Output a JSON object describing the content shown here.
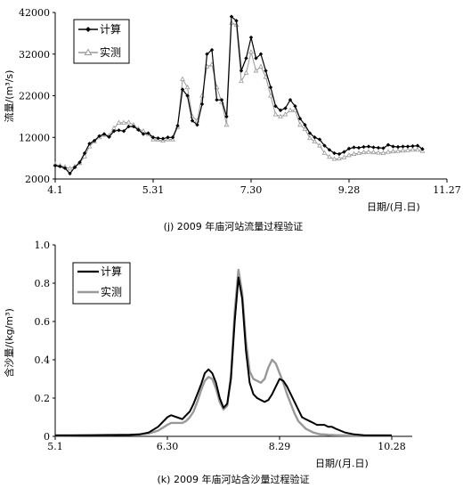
{
  "chart_data": [
    {
      "type": "line",
      "caption": "(j) 2009 年庙河站流量过程验证",
      "xlabel": "日期/(月.日)",
      "ylabel": "流量/(m³/s)",
      "xticks": [
        "4.1",
        "5.31",
        "7.30",
        "9.28",
        "11.27"
      ],
      "yticks": [
        "2000",
        "12000",
        "22000",
        "32000",
        "42000"
      ],
      "ylim": [
        2000,
        42000
      ],
      "legend_position": "top-left",
      "series": [
        {
          "name": "计算",
          "color": "#000000",
          "marker": "diamond",
          "x": [
            0,
            3,
            6,
            9,
            12,
            15,
            18,
            21,
            24,
            27,
            30,
            33,
            36,
            39,
            42,
            45,
            48,
            51,
            54,
            57,
            60,
            63,
            66,
            69,
            72,
            75,
            78,
            81,
            84,
            87,
            90,
            93,
            96,
            99,
            102,
            105,
            108,
            111,
            114,
            117,
            120,
            123,
            126,
            129,
            132,
            135,
            138,
            141,
            144,
            147,
            150,
            153,
            156,
            159,
            162,
            165,
            168,
            171,
            174,
            177,
            180,
            183,
            186,
            189,
            192,
            195,
            198,
            201,
            204,
            207,
            210,
            213,
            216,
            219,
            222,
            225
          ],
          "values": [
            5200,
            5000,
            4600,
            3300,
            4800,
            6000,
            8200,
            10500,
            11200,
            12300,
            12800,
            12100,
            13500,
            13700,
            13500,
            14600,
            14600,
            13800,
            12800,
            13000,
            12000,
            11800,
            11700,
            12000,
            12000,
            14800,
            23500,
            22000,
            16000,
            15000,
            20000,
            32000,
            33000,
            21000,
            21000,
            17000,
            41000,
            40000,
            28000,
            31000,
            36000,
            31000,
            32000,
            28000,
            24000,
            19500,
            18500,
            19000,
            21000,
            19500,
            16500,
            15000,
            13000,
            12000,
            11500,
            10000,
            9000,
            8200,
            8000,
            8500,
            9300,
            9600,
            9500,
            9700,
            9800,
            9600,
            9500,
            9400,
            10200,
            9800,
            9700,
            9800,
            9800,
            9900,
            10000,
            9200
          ]
        },
        {
          "name": "实测",
          "color": "#999999",
          "marker": "triangle",
          "x": [
            0,
            3,
            6,
            9,
            12,
            15,
            18,
            21,
            24,
            27,
            30,
            33,
            36,
            39,
            42,
            45,
            48,
            51,
            54,
            57,
            60,
            63,
            66,
            69,
            72,
            75,
            78,
            81,
            84,
            87,
            90,
            93,
            96,
            99,
            102,
            105,
            108,
            111,
            114,
            117,
            120,
            123,
            126,
            129,
            132,
            135,
            138,
            141,
            144,
            147,
            150,
            153,
            156,
            159,
            162,
            165,
            168,
            171,
            174,
            177,
            180,
            183,
            186,
            189,
            192,
            195,
            198,
            201,
            204,
            207,
            210,
            213,
            216,
            219,
            222,
            225
          ],
          "values": [
            5500,
            5200,
            4900,
            4500,
            5000,
            5800,
            7400,
            9800,
            11000,
            12000,
            12600,
            12400,
            14200,
            15500,
            15500,
            15600,
            15000,
            14000,
            13500,
            12800,
            11500,
            11400,
            11200,
            11500,
            11500,
            14500,
            26000,
            24000,
            17000,
            16000,
            22000,
            29000,
            29500,
            24000,
            20500,
            15000,
            39500,
            39000,
            25500,
            27500,
            32500,
            28000,
            29000,
            26500,
            22000,
            17500,
            17000,
            17500,
            18500,
            18500,
            15000,
            14000,
            11800,
            11000,
            10000,
            8200,
            7300,
            6800,
            6900,
            7200,
            7700,
            8000,
            8200,
            8400,
            8500,
            8400,
            8300,
            8200,
            8500,
            8600,
            8700,
            8800,
            8900,
            9000,
            9000,
            8700
          ]
        }
      ]
    },
    {
      "type": "line",
      "caption": "(k) 2009 年庙河站含沙量过程验证",
      "xlabel": "日期/(月.日)",
      "ylabel": "含沙量/(kg/m³)",
      "xticks": [
        "5.1",
        "6.30",
        "8.29",
        "10.28"
      ],
      "yticks": [
        "0",
        "0.2",
        "0.4",
        "0.6",
        "0.8",
        "1.0"
      ],
      "ylim": [
        0,
        1.0
      ],
      "legend_position": "top-left",
      "series": [
        {
          "name": "计算",
          "color": "#000000",
          "x": [
            0,
            10,
            20,
            30,
            40,
            45,
            50,
            55,
            60,
            62,
            65,
            68,
            70,
            72,
            74,
            76,
            78,
            80,
            82,
            84,
            86,
            88,
            90,
            92,
            94,
            96,
            98,
            100,
            102,
            104,
            106,
            108,
            110,
            112,
            114,
            116,
            118,
            120,
            122,
            124,
            126,
            128,
            130,
            132,
            134,
            136,
            138,
            140,
            142,
            144,
            146,
            148,
            150,
            155,
            160,
            165,
            170,
            175,
            180
          ],
          "values": [
            0.005,
            0.005,
            0.006,
            0.007,
            0.008,
            0.01,
            0.02,
            0.05,
            0.1,
            0.11,
            0.1,
            0.09,
            0.11,
            0.13,
            0.17,
            0.22,
            0.27,
            0.33,
            0.35,
            0.33,
            0.28,
            0.2,
            0.15,
            0.17,
            0.3,
            0.6,
            0.83,
            0.72,
            0.45,
            0.28,
            0.22,
            0.2,
            0.19,
            0.18,
            0.19,
            0.22,
            0.26,
            0.3,
            0.29,
            0.26,
            0.22,
            0.18,
            0.14,
            0.1,
            0.09,
            0.08,
            0.07,
            0.06,
            0.06,
            0.06,
            0.05,
            0.05,
            0.04,
            0.02,
            0.01,
            0.006,
            0.005,
            0.005,
            0.005
          ]
        },
        {
          "name": "实测",
          "color": "#999999",
          "x": [
            0,
            10,
            20,
            30,
            40,
            45,
            50,
            55,
            60,
            62,
            65,
            68,
            70,
            72,
            74,
            76,
            78,
            80,
            82,
            84,
            86,
            88,
            90,
            92,
            94,
            96,
            98,
            100,
            102,
            104,
            106,
            108,
            110,
            112,
            114,
            116,
            118,
            120,
            122,
            124,
            126,
            128,
            130,
            132,
            134,
            136,
            138,
            140,
            142,
            144,
            146,
            148,
            150,
            155,
            160,
            165,
            170,
            175,
            180
          ],
          "values": [
            0.004,
            0.005,
            0.006,
            0.007,
            0.008,
            0.01,
            0.015,
            0.03,
            0.06,
            0.07,
            0.07,
            0.07,
            0.08,
            0.1,
            0.13,
            0.18,
            0.24,
            0.29,
            0.31,
            0.3,
            0.25,
            0.18,
            0.14,
            0.16,
            0.32,
            0.65,
            0.87,
            0.75,
            0.5,
            0.34,
            0.3,
            0.29,
            0.28,
            0.3,
            0.36,
            0.4,
            0.38,
            0.33,
            0.28,
            0.22,
            0.17,
            0.12,
            0.08,
            0.06,
            0.04,
            0.03,
            0.02,
            0.015,
            0.01,
            0.01,
            0.008,
            0.007,
            0.006,
            0.005,
            0.004,
            0.004,
            0.004,
            0.004,
            0.004
          ]
        }
      ]
    }
  ]
}
